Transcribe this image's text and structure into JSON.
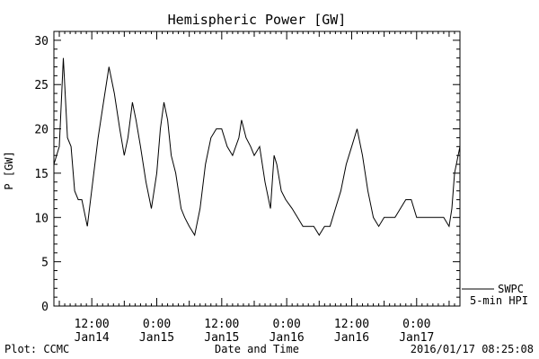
{
  "chart_data": {
    "type": "line",
    "title": "Hemispheric Power [GW]",
    "xlabel": "Date and Time",
    "ylabel": "P [GW]",
    "ylim": [
      0,
      31
    ],
    "xlim": [
      "2016-01-14 05:00",
      "2016-01-17 08:00"
    ],
    "yticks": [
      0,
      5,
      10,
      15,
      20,
      25,
      30
    ],
    "xticks": [
      {
        "time": "2016-01-14 12:00",
        "line1": "12:00",
        "line2": "Jan14"
      },
      {
        "time": "2016-01-15 00:00",
        "line1": "0:00",
        "line2": "Jan15"
      },
      {
        "time": "2016-01-15 12:00",
        "line1": "12:00",
        "line2": "Jan15"
      },
      {
        "time": "2016-01-16 00:00",
        "line1": "0:00",
        "line2": "Jan16"
      },
      {
        "time": "2016-01-16 12:00",
        "line1": "12:00",
        "line2": "Jan16"
      },
      {
        "time": "2016-01-17 00:00",
        "line1": "0:00",
        "line2": "Jan17"
      }
    ],
    "legend": {
      "position": "right",
      "entries": [
        "SWPC",
        "5-min HPI"
      ]
    },
    "series": [
      {
        "name": "SWPC",
        "x": [
          "2016-01-14 05:00",
          "2016-01-14 06:00",
          "2016-01-14 06:45",
          "2016-01-14 07:30",
          "2016-01-14 08:10",
          "2016-01-14 08:50",
          "2016-01-14 09:30",
          "2016-01-14 10:10",
          "2016-01-14 11:10",
          "2016-01-14 12:10",
          "2016-01-14 13:10",
          "2016-01-14 14:10",
          "2016-01-14 15:10",
          "2016-01-14 16:10",
          "2016-01-14 17:10",
          "2016-01-14 18:00",
          "2016-01-14 18:40",
          "2016-01-14 19:30",
          "2016-01-14 20:10",
          "2016-01-14 21:00",
          "2016-01-14 22:00",
          "2016-01-14 23:00",
          "2016-01-15 00:00",
          "2016-01-15 00:40",
          "2016-01-15 01:20",
          "2016-01-15 02:00",
          "2016-01-15 02:40",
          "2016-01-15 03:30",
          "2016-01-15 04:00",
          "2016-01-15 04:30",
          "2016-01-15 05:10",
          "2016-01-15 06:00",
          "2016-01-15 07:00",
          "2016-01-15 08:00",
          "2016-01-15 09:00",
          "2016-01-15 10:00",
          "2016-01-15 11:00",
          "2016-01-15 12:00",
          "2016-01-15 13:00",
          "2016-01-15 14:00",
          "2016-01-15 15:10",
          "2016-01-15 15:40",
          "2016-01-15 16:30",
          "2016-01-15 17:20",
          "2016-01-15 18:00",
          "2016-01-15 19:00",
          "2016-01-15 20:00",
          "2016-01-15 21:00",
          "2016-01-15 21:40",
          "2016-01-15 22:10",
          "2016-01-15 23:00",
          "2016-01-15 23:50",
          "2016-01-16 01:00",
          "2016-01-16 02:00",
          "2016-01-16 03:00",
          "2016-01-16 04:00",
          "2016-01-16 05:00",
          "2016-01-16 06:00",
          "2016-01-16 07:00",
          "2016-01-16 08:00",
          "2016-01-16 09:00",
          "2016-01-16 10:00",
          "2016-01-16 11:00",
          "2016-01-16 12:00",
          "2016-01-16 13:00",
          "2016-01-16 14:00",
          "2016-01-16 15:00",
          "2016-01-16 16:00",
          "2016-01-16 17:00",
          "2016-01-16 18:00",
          "2016-01-16 19:00",
          "2016-01-16 20:00",
          "2016-01-16 21:00",
          "2016-01-16 22:00",
          "2016-01-16 23:00",
          "2016-01-17 00:00",
          "2016-01-17 01:00",
          "2016-01-17 02:00",
          "2016-01-17 03:00",
          "2016-01-17 04:00",
          "2016-01-17 05:00",
          "2016-01-17 06:00",
          "2016-01-17 06:30",
          "2016-01-17 07:00",
          "2016-01-17 08:00"
        ],
        "y": [
          16,
          18,
          28,
          19,
          18,
          13,
          12,
          12,
          9,
          14,
          19,
          23,
          27,
          24,
          20,
          17,
          19,
          23,
          21,
          18,
          14,
          11,
          15,
          20,
          23,
          21,
          17,
          15,
          13,
          11,
          10,
          9,
          8,
          11,
          16,
          19,
          20,
          20,
          18,
          17,
          19,
          21,
          19,
          18,
          17,
          18,
          14,
          11,
          17,
          16,
          13,
          12,
          11,
          10,
          9,
          9,
          9,
          8,
          9,
          9,
          11,
          13,
          16,
          18,
          20,
          17,
          13,
          10,
          9,
          10,
          10,
          10,
          11,
          12,
          12,
          10,
          10,
          10,
          10,
          10,
          10,
          9,
          11,
          15,
          18
        ]
      }
    ]
  },
  "footer": {
    "left": "Plot: CCMC",
    "center": "Date and Time",
    "right": "2016/01/17 08:25:08"
  }
}
